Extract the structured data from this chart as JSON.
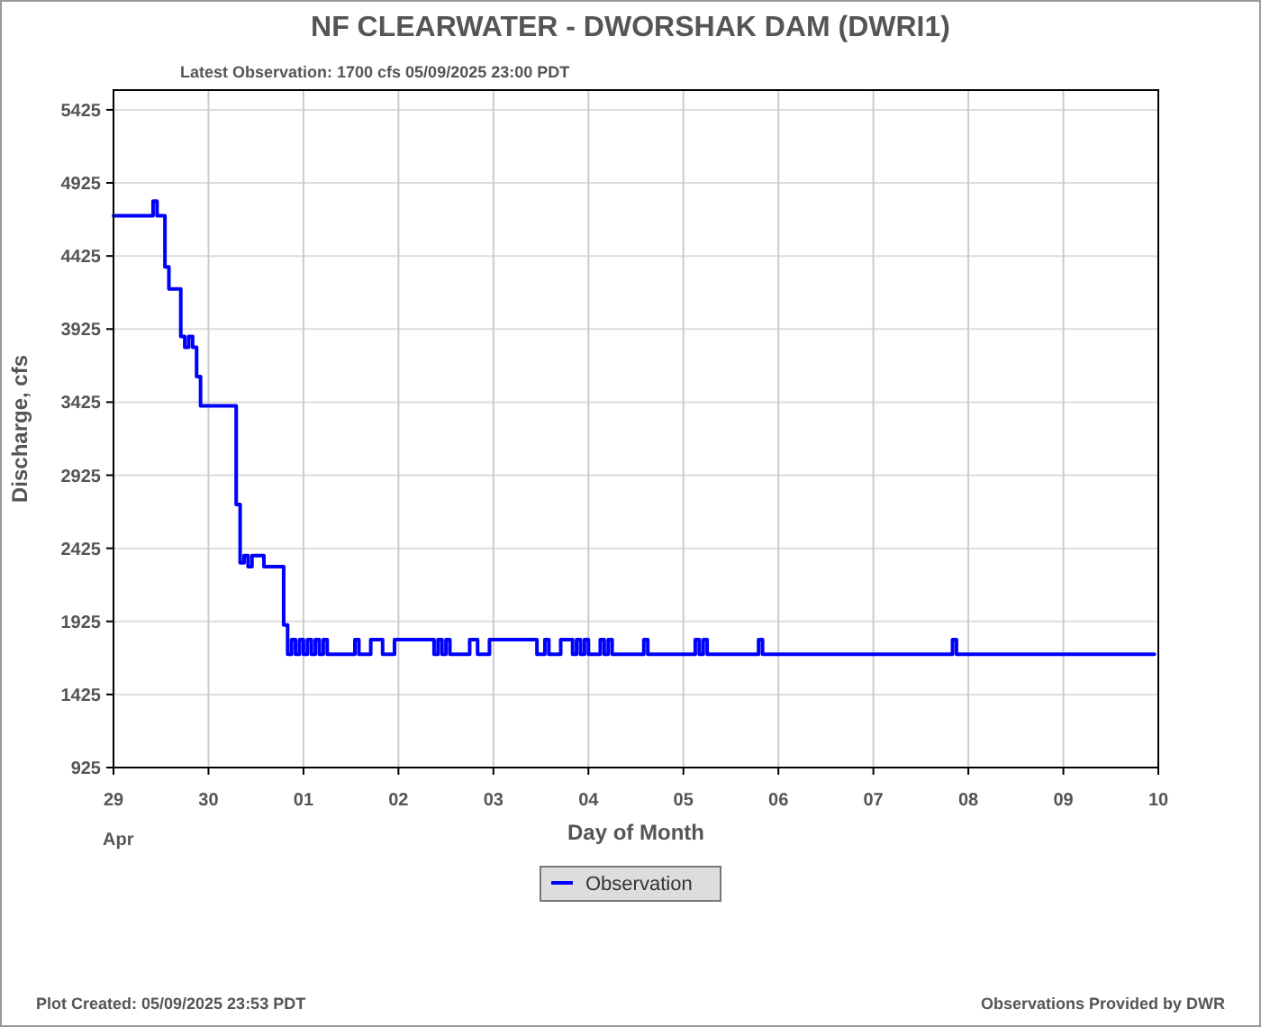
{
  "chart_data": {
    "type": "step",
    "title": "NF CLEARWATER - DWORSHAK DAM  (DWRI1)",
    "subtitle": "Latest Observation: 1700 cfs 05/09/2025 23:00 PDT",
    "xlabel": "Day of Month",
    "ylabel": "Discharge, cfs",
    "annotations": [
      "Plot Created: 05/09/2025 23:53 PDT",
      "Observations Provided by DWR"
    ],
    "xlim": [
      "2025-04-29",
      "2025-05-10"
    ],
    "xticks": [
      {
        "value": "2025-04-29",
        "label": "29\nApr"
      },
      {
        "value": "2025-04-30",
        "label": "30"
      },
      {
        "value": "2025-05-01",
        "label": "01"
      },
      {
        "value": "2025-05-02",
        "label": "02"
      },
      {
        "value": "2025-05-03",
        "label": "03"
      },
      {
        "value": "2025-05-04",
        "label": "04"
      },
      {
        "value": "2025-05-05",
        "label": "05"
      },
      {
        "value": "2025-05-06",
        "label": "06"
      },
      {
        "value": "2025-05-07",
        "label": "07"
      },
      {
        "value": "2025-05-08",
        "label": "08"
      },
      {
        "value": "2025-05-09",
        "label": "09"
      },
      {
        "value": "2025-05-10",
        "label": "10"
      }
    ],
    "ylim": [
      925,
      5560
    ],
    "yticks": [
      925,
      1425,
      1925,
      2425,
      2925,
      3425,
      3925,
      4425,
      4925,
      5425
    ],
    "grid": true,
    "legend": "bottom",
    "series": [
      {
        "name": "Observation",
        "color": "#0000ff",
        "x": [
          "2025-04-29T00:00",
          "2025-04-29T09:00",
          "2025-04-29T10:00",
          "2025-04-29T11:00",
          "2025-04-29T12:00",
          "2025-04-29T13:00",
          "2025-04-29T14:00",
          "2025-04-29T16:00",
          "2025-04-29T17:00",
          "2025-04-29T18:00",
          "2025-04-29T19:00",
          "2025-04-29T20:00",
          "2025-04-29T21:00",
          "2025-04-29T22:00",
          "2025-04-30T06:00",
          "2025-04-30T07:00",
          "2025-04-30T08:00",
          "2025-04-30T09:00",
          "2025-04-30T10:00",
          "2025-04-30T11:00",
          "2025-04-30T13:00",
          "2025-04-30T14:00",
          "2025-04-30T18:00",
          "2025-04-30T19:00",
          "2025-04-30T20:00",
          "2025-04-30T21:00",
          "2025-04-30T22:00",
          "2025-04-30T23:00",
          "2025-05-01T00:00",
          "2025-05-01T01:00",
          "2025-05-01T02:00",
          "2025-05-01T03:00",
          "2025-05-01T04:00",
          "2025-05-01T05:00",
          "2025-05-01T06:00",
          "2025-05-01T12:00",
          "2025-05-01T13:00",
          "2025-05-01T14:00",
          "2025-05-01T16:00",
          "2025-05-01T17:00",
          "2025-05-01T19:00",
          "2025-05-01T20:00",
          "2025-05-01T22:00",
          "2025-05-01T23:00",
          "2025-05-02T08:00",
          "2025-05-02T09:00",
          "2025-05-02T10:00",
          "2025-05-02T11:00",
          "2025-05-02T12:00",
          "2025-05-02T13:00",
          "2025-05-02T17:00",
          "2025-05-02T18:00",
          "2025-05-02T19:00",
          "2025-05-02T20:00",
          "2025-05-02T23:00",
          "2025-05-03T10:00",
          "2025-05-03T11:00",
          "2025-05-03T13:00",
          "2025-05-03T14:00",
          "2025-05-03T16:00",
          "2025-05-03T17:00",
          "2025-05-03T19:00",
          "2025-05-03T20:00",
          "2025-05-03T21:00",
          "2025-05-03T22:00",
          "2025-05-03T23:00",
          "2025-05-04T00:00",
          "2025-05-04T03:00",
          "2025-05-04T04:00",
          "2025-05-04T05:00",
          "2025-05-04T06:00",
          "2025-05-04T13:00",
          "2025-05-04T14:00",
          "2025-05-04T15:00",
          "2025-05-05T03:00",
          "2025-05-05T04:00",
          "2025-05-05T05:00",
          "2025-05-05T06:00",
          "2025-05-05T18:00",
          "2025-05-05T19:00",
          "2025-05-05T20:00",
          "2025-05-07T19:00",
          "2025-05-07T20:00",
          "2025-05-07T21:00",
          "2025-05-09T23:00"
        ],
        "values": [
          4700,
          4700,
          4800,
          4700,
          4700,
          4350,
          4200,
          4200,
          3875,
          3800,
          3875,
          3800,
          3600,
          3400,
          3400,
          2725,
          2325,
          2375,
          2300,
          2375,
          2375,
          2300,
          2300,
          1900,
          1700,
          1800,
          1700,
          1800,
          1700,
          1800,
          1700,
          1800,
          1700,
          1800,
          1700,
          1700,
          1800,
          1700,
          1700,
          1800,
          1800,
          1700,
          1700,
          1800,
          1800,
          1700,
          1800,
          1700,
          1800,
          1700,
          1700,
          1800,
          1800,
          1700,
          1800,
          1800,
          1700,
          1800,
          1700,
          1700,
          1800,
          1800,
          1700,
          1800,
          1700,
          1800,
          1700,
          1800,
          1700,
          1800,
          1700,
          1700,
          1800,
          1700,
          1800,
          1700,
          1800,
          1700,
          1700,
          1800,
          1700,
          1700,
          1800,
          1700,
          1700
        ]
      }
    ]
  }
}
